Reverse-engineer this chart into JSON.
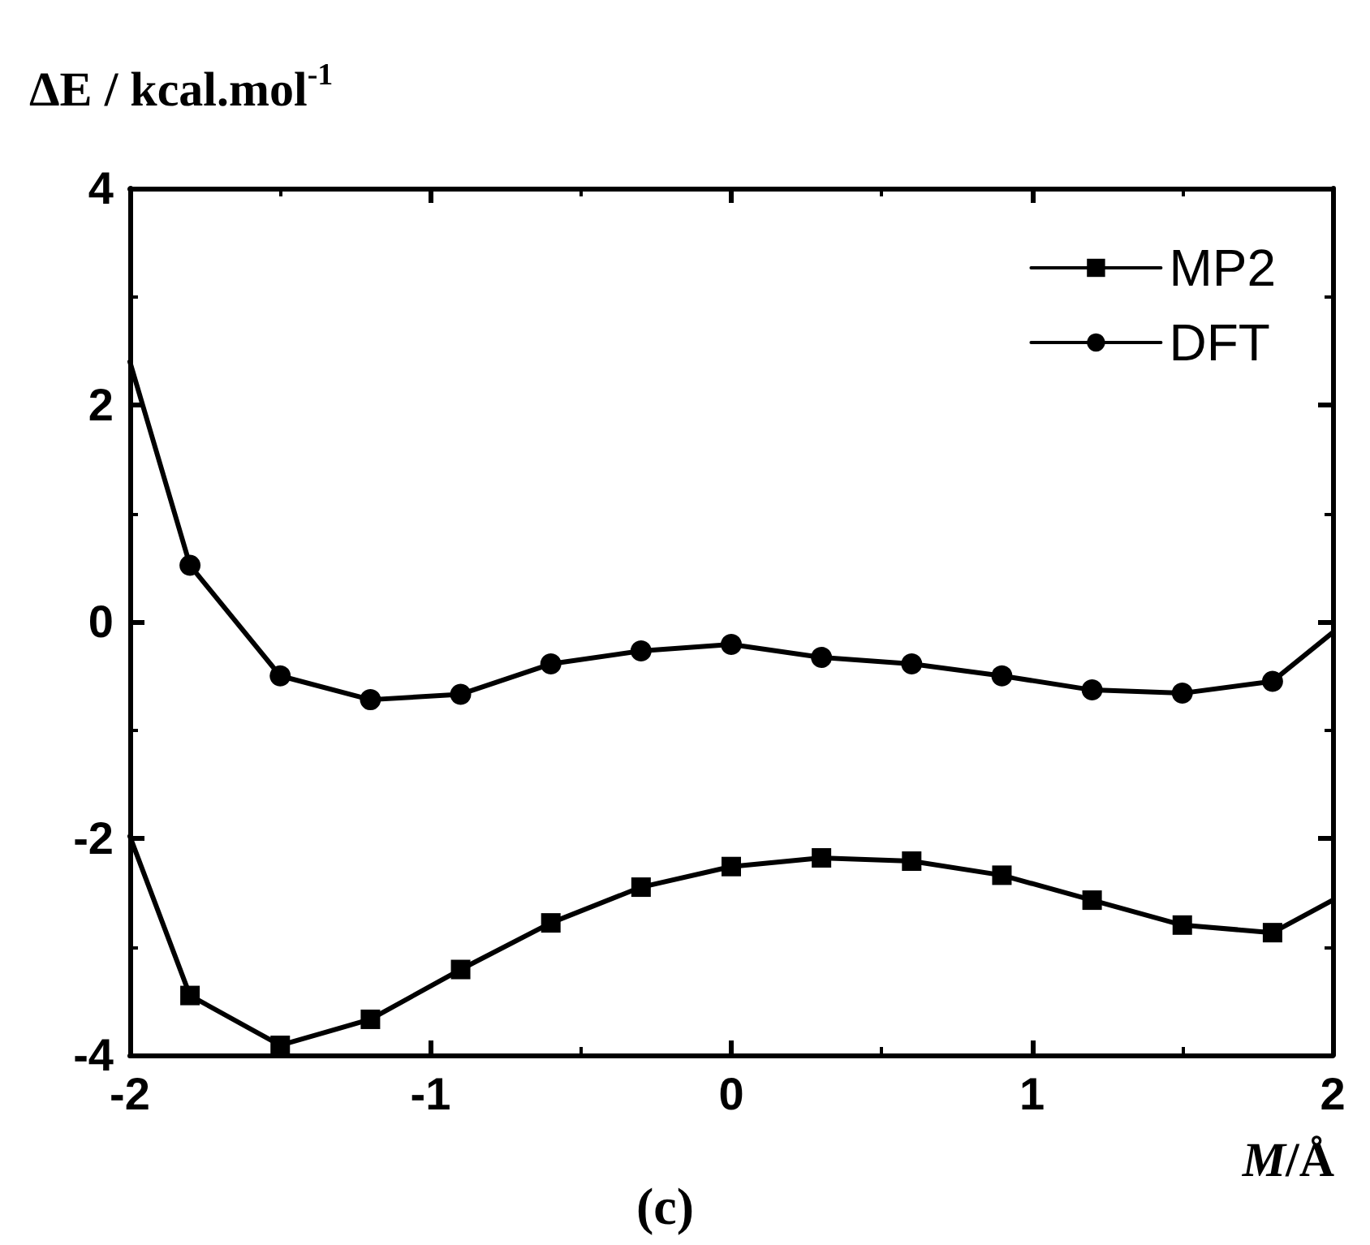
{
  "chart_data": {
    "type": "line",
    "ylabel": "ΔE / kcal.mol$^{-1}$",
    "xlabel": "M/Å",
    "annotations": [
      "(c)"
    ],
    "x": [
      -2,
      -1.8,
      -1.5,
      -1.2,
      -0.9,
      -0.6,
      -0.3,
      0,
      0.3,
      0.6,
      0.9,
      1.2,
      1.5,
      1.8,
      2
    ],
    "series": [
      {
        "name": "MP2",
        "color": "#000000",
        "marker": "square",
        "values": [
          -1.98,
          -3.45,
          -3.91,
          -3.67,
          -3.21,
          -2.78,
          -2.45,
          -2.26,
          -2.18,
          -2.21,
          -2.34,
          -2.57,
          -2.8,
          -2.87,
          -2.57
        ]
      },
      {
        "name": "DFT",
        "color": "#000000",
        "marker": "circle",
        "values": [
          2.4,
          0.52,
          -0.5,
          -0.72,
          -0.67,
          -0.39,
          -0.27,
          -0.21,
          -0.33,
          -0.39,
          -0.5,
          -0.63,
          -0.66,
          -0.55,
          -0.1
        ]
      }
    ],
    "xlim": [
      -2,
      2
    ],
    "xticks": [
      -2,
      -1,
      0,
      1,
      2
    ],
    "ylim": [
      -4,
      4
    ],
    "yticks": [
      -4,
      -2,
      0,
      2,
      4
    ],
    "legend": "top right",
    "grid": false,
    "line_style": "solid"
  }
}
